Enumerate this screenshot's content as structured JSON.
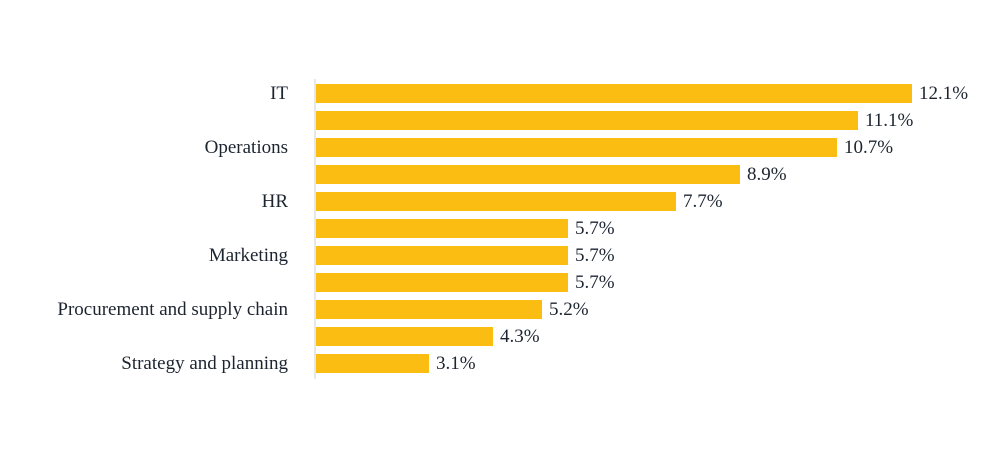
{
  "chart_data": {
    "type": "bar",
    "orientation": "horizontal",
    "title": "",
    "xlabel": "",
    "ylabel": "",
    "grid": false,
    "legend": false,
    "xlim": [
      1.0,
      12.1
    ],
    "bar_color": "#fcbd12",
    "axis_line_color": "#e7e7e7",
    "text_color": "#1c2430",
    "categories_labeled": [
      "IT",
      "Operations",
      "HR",
      "Marketing",
      "Procurement and supply chain",
      "Strategy and planning"
    ],
    "bars": [
      {
        "label": "IT",
        "value": 12.1,
        "value_label": "12.1%"
      },
      {
        "label": "",
        "value": 11.1,
        "value_label": "11.1%"
      },
      {
        "label": "Operations",
        "value": 10.7,
        "value_label": "10.7%"
      },
      {
        "label": "",
        "value": 8.9,
        "value_label": "8.9%"
      },
      {
        "label": "HR",
        "value": 7.7,
        "value_label": "7.7%"
      },
      {
        "label": "",
        "value": 5.7,
        "value_label": "5.7%"
      },
      {
        "label": "Marketing",
        "value": 5.7,
        "value_label": "5.7%"
      },
      {
        "label": "",
        "value": 5.7,
        "value_label": "5.7%"
      },
      {
        "label": "Procurement and supply chain",
        "value": 5.2,
        "value_label": "5.2%"
      },
      {
        "label": "",
        "value": 4.3,
        "value_label": "4.3%"
      },
      {
        "label": "Strategy and planning",
        "value": 3.1,
        "value_label": "3.1%"
      }
    ]
  }
}
